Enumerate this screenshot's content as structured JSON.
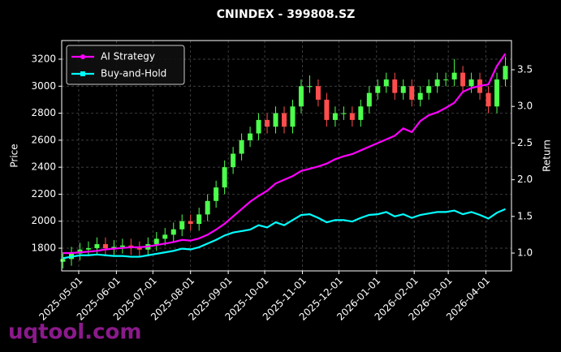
{
  "chart_data": {
    "type": "candlestick",
    "title": "CNINDEX - 399808.SZ",
    "ylabel": "Price",
    "y2label": "Return",
    "watermark": "uqtool.com",
    "x": [
      "2025-04-18",
      "2025-04-25",
      "2025-05-02",
      "2025-05-09",
      "2025-05-16",
      "2025-05-23",
      "2025-05-30",
      "2025-06-06",
      "2025-06-13",
      "2025-06-20",
      "2025-06-27",
      "2025-07-04",
      "2025-07-11",
      "2025-07-18",
      "2025-07-25",
      "2025-08-01",
      "2025-08-08",
      "2025-08-15",
      "2025-08-22",
      "2025-08-29",
      "2025-09-05",
      "2025-09-12",
      "2025-09-19",
      "2025-09-26",
      "2025-10-03",
      "2025-10-10",
      "2025-10-17",
      "2025-10-24",
      "2025-10-31",
      "2025-11-07",
      "2025-11-14",
      "2025-11-21",
      "2025-11-28",
      "2025-12-05",
      "2025-12-12",
      "2025-12-19",
      "2025-12-26",
      "2026-01-02",
      "2026-01-09",
      "2026-01-16",
      "2026-01-23",
      "2026-01-30",
      "2026-02-06",
      "2026-02-13",
      "2026-02-20",
      "2026-02-27",
      "2026-03-06",
      "2026-03-13",
      "2026-03-20",
      "2026-03-27",
      "2026-04-03",
      "2026-04-10",
      "2026-04-17"
    ],
    "open": [
      1700,
      1720,
      1760,
      1790,
      1800,
      1830,
      1800,
      1810,
      1820,
      1800,
      1790,
      1830,
      1870,
      1900,
      1940,
      2000,
      1980,
      2050,
      2150,
      2250,
      2400,
      2500,
      2600,
      2650,
      2750,
      2700,
      2800,
      2700,
      2850,
      3000,
      3000,
      2900,
      2750,
      2800,
      2800,
      2750,
      2850,
      2950,
      3000,
      3050,
      2950,
      3000,
      2900,
      2950,
      3000,
      3050,
      3050,
      3100,
      3000,
      3050,
      2950,
      2850,
      3050
    ],
    "high": [
      1770,
      1810,
      1840,
      1850,
      1880,
      1880,
      1860,
      1870,
      1870,
      1850,
      1880,
      1920,
      1950,
      1990,
      2050,
      2050,
      2100,
      2200,
      2300,
      2450,
      2550,
      2650,
      2700,
      2800,
      2800,
      2850,
      2850,
      2900,
      3050,
      3080,
      3050,
      2950,
      2850,
      2850,
      2850,
      2900,
      3000,
      3050,
      3100,
      3100,
      3050,
      3050,
      3000,
      3050,
      3100,
      3100,
      3200,
      3150,
      3100,
      3100,
      3000,
      3100,
      3220
    ],
    "low": [
      1650,
      1670,
      1710,
      1740,
      1750,
      1750,
      1750,
      1760,
      1750,
      1740,
      1740,
      1780,
      1820,
      1850,
      1890,
      1930,
      1930,
      2000,
      2100,
      2200,
      2350,
      2450,
      2550,
      2600,
      2650,
      2650,
      2650,
      2650,
      2800,
      2950,
      2850,
      2700,
      2700,
      2750,
      2700,
      2700,
      2800,
      2900,
      2950,
      2900,
      2900,
      2850,
      2850,
      2900,
      2950,
      3000,
      3000,
      2950,
      2950,
      2900,
      2800,
      2800,
      3000
    ],
    "close": [
      1720,
      1760,
      1790,
      1800,
      1830,
      1800,
      1810,
      1820,
      1800,
      1790,
      1830,
      1870,
      1900,
      1940,
      2000,
      1980,
      2050,
      2150,
      2250,
      2400,
      2500,
      2600,
      2650,
      2750,
      2700,
      2800,
      2700,
      2850,
      3000,
      3000,
      2900,
      2750,
      2800,
      2800,
      2750,
      2850,
      2950,
      3000,
      3050,
      2950,
      3000,
      2900,
      2950,
      3000,
      3050,
      3050,
      3100,
      3000,
      3050,
      2950,
      2850,
      3050,
      3150
    ],
    "up_color": "#4dff4d",
    "down_color": "#ff4d4d",
    "series": [
      {
        "name": "AI Strategy",
        "color": "#ff00ff",
        "axis": "y2",
        "marker": "circle",
        "values": [
          1.0,
          1.0,
          1.01,
          1.02,
          1.03,
          1.05,
          1.06,
          1.07,
          1.08,
          1.08,
          1.09,
          1.11,
          1.13,
          1.15,
          1.18,
          1.17,
          1.2,
          1.25,
          1.32,
          1.4,
          1.5,
          1.6,
          1.7,
          1.78,
          1.85,
          1.95,
          2.0,
          2.05,
          2.12,
          2.15,
          2.18,
          2.22,
          2.28,
          2.32,
          2.35,
          2.4,
          2.45,
          2.5,
          2.55,
          2.6,
          2.7,
          2.65,
          2.8,
          2.88,
          2.92,
          2.98,
          3.05,
          3.2,
          3.25,
          3.28,
          3.3,
          3.55,
          3.72
        ]
      },
      {
        "name": "Buy-and-Hold",
        "color": "#00ffff",
        "axis": "y2",
        "marker": "square",
        "values": [
          0.93,
          0.95,
          0.97,
          0.97,
          0.98,
          0.97,
          0.96,
          0.96,
          0.95,
          0.95,
          0.97,
          0.99,
          1.01,
          1.03,
          1.06,
          1.05,
          1.08,
          1.13,
          1.18,
          1.24,
          1.28,
          1.3,
          1.32,
          1.38,
          1.35,
          1.42,
          1.38,
          1.45,
          1.52,
          1.53,
          1.48,
          1.42,
          1.45,
          1.45,
          1.43,
          1.48,
          1.52,
          1.53,
          1.56,
          1.5,
          1.53,
          1.48,
          1.52,
          1.54,
          1.56,
          1.56,
          1.58,
          1.53,
          1.56,
          1.52,
          1.47,
          1.55,
          1.6
        ]
      }
    ],
    "xlim": [
      "2025-04-17",
      "2026-04-22"
    ],
    "xticks": [
      "2025-05-01",
      "2025-06-01",
      "2025-07-01",
      "2025-08-01",
      "2025-09-01",
      "2025-10-01",
      "2025-11-01",
      "2025-12-01",
      "2026-01-01",
      "2026-02-01",
      "2026-03-01",
      "2026-04-01"
    ],
    "ylim": [
      1632,
      3338
    ],
    "yticks": [
      1800,
      2000,
      2200,
      2400,
      2600,
      2800,
      3000,
      3200
    ],
    "y2lim": [
      0.757,
      3.898
    ],
    "y2ticks": [
      {
        "value": 1,
        "label": "1.0"
      },
      {
        "value": 1.5,
        "label": "1.5"
      },
      {
        "value": 2,
        "label": "2.0"
      },
      {
        "value": 2.5,
        "label": "2.5"
      },
      {
        "value": 3,
        "label": "3.0"
      },
      {
        "value": 3.5,
        "label": "3.5"
      }
    ],
    "grid": true,
    "legend": "upper left"
  }
}
